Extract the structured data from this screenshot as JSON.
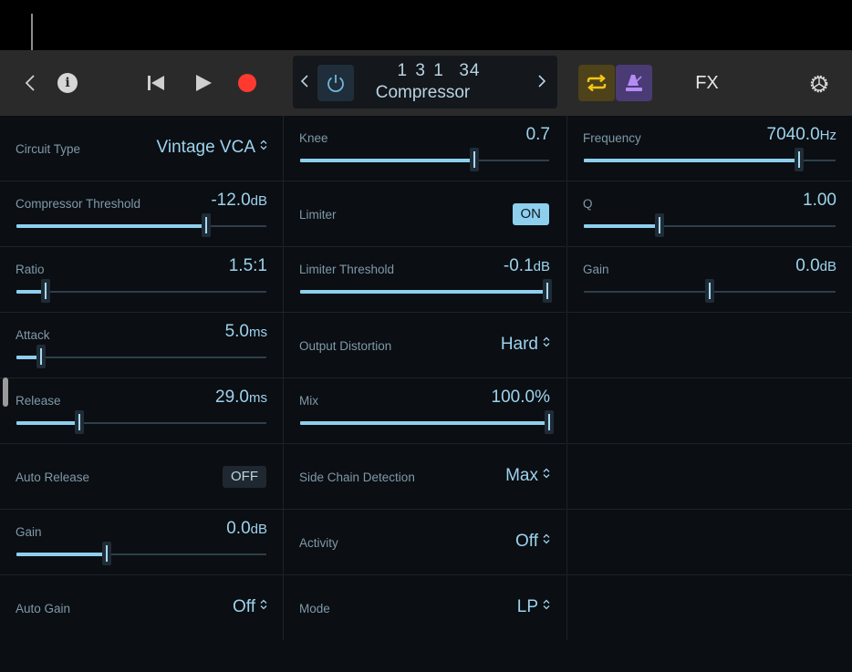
{
  "toolbar": {
    "back_icon": "chevron-left-icon",
    "info_icon": "info-icon",
    "info_glyph": "i",
    "rewind_icon": "skip-back-icon",
    "play_icon": "play-icon",
    "record_icon": "record-icon",
    "record_color": "#fe3a30",
    "plugin_header": {
      "prev_icon": "chevron-left-icon",
      "power_icon": "power-icon",
      "position": "1 3 1  34",
      "plugin_name": "Compressor",
      "next_icon": "chevron-right-icon"
    },
    "cycle_icon": "cycle-icon",
    "cycle_color": "#f5c518",
    "metronome_icon": "metronome-icon",
    "metronome_color": "#b58cf5",
    "fx_label": "FX",
    "settings_icon": "gear-icon"
  },
  "columns": [
    {
      "rows": [
        {
          "type": "select",
          "label": "Circuit Type",
          "value": "Vintage VCA"
        },
        {
          "type": "slider",
          "label": "Compressor Threshold",
          "value": "-12.0",
          "unit": "dB",
          "position": 0.76
        },
        {
          "type": "slider",
          "label": "Ratio",
          "value": "1.5:1",
          "unit": "",
          "position": 0.115
        },
        {
          "type": "slider",
          "label": "Attack",
          "value": "5.0",
          "unit": "ms",
          "position": 0.098
        },
        {
          "type": "slider",
          "label": "Release",
          "value": "29.0",
          "unit": "ms",
          "position": 0.25
        },
        {
          "type": "toggle",
          "label": "Auto Release",
          "value": "OFF",
          "state": false
        },
        {
          "type": "slider",
          "label": "Gain",
          "value": "0.0",
          "unit": "dB",
          "position": 0.36
        },
        {
          "type": "select",
          "label": "Auto Gain",
          "value": "Off"
        }
      ]
    },
    {
      "rows": [
        {
          "type": "slider",
          "label": "Knee",
          "value": "0.7",
          "unit": "",
          "position": 0.7
        },
        {
          "type": "toggle",
          "label": "Limiter",
          "value": "ON",
          "state": true
        },
        {
          "type": "slider",
          "label": "Limiter Threshold",
          "value": "-0.1",
          "unit": "dB",
          "position": 0.992
        },
        {
          "type": "select",
          "label": "Output Distortion",
          "value": "Hard"
        },
        {
          "type": "slider",
          "label": "Mix",
          "value": "100.0%",
          "unit": "",
          "position": 1.0
        },
        {
          "type": "select",
          "label": "Side Chain Detection",
          "value": "Max"
        },
        {
          "type": "select",
          "label": "Activity",
          "value": "Off"
        },
        {
          "type": "select",
          "label": "Mode",
          "value": "LP"
        }
      ]
    },
    {
      "rows": [
        {
          "type": "slider",
          "label": "Frequency",
          "value": "7040.0",
          "unit": "Hz",
          "position": 0.855
        },
        {
          "type": "slider",
          "label": "Q",
          "value": "1.00",
          "unit": "",
          "position": 0.3
        },
        {
          "type": "slider",
          "label": "Gain",
          "value": "0.0",
          "unit": "dB",
          "position": 0.5,
          "no_fill": true
        },
        {
          "type": "empty"
        },
        {
          "type": "empty"
        },
        {
          "type": "empty"
        },
        {
          "type": "empty"
        },
        {
          "type": "empty"
        }
      ]
    }
  ],
  "colors": {
    "accent": "#8ecfee",
    "label": "#7e99aa",
    "panel_bg": "#0b0e12",
    "toolbar_bg": "#2a2a2a"
  }
}
